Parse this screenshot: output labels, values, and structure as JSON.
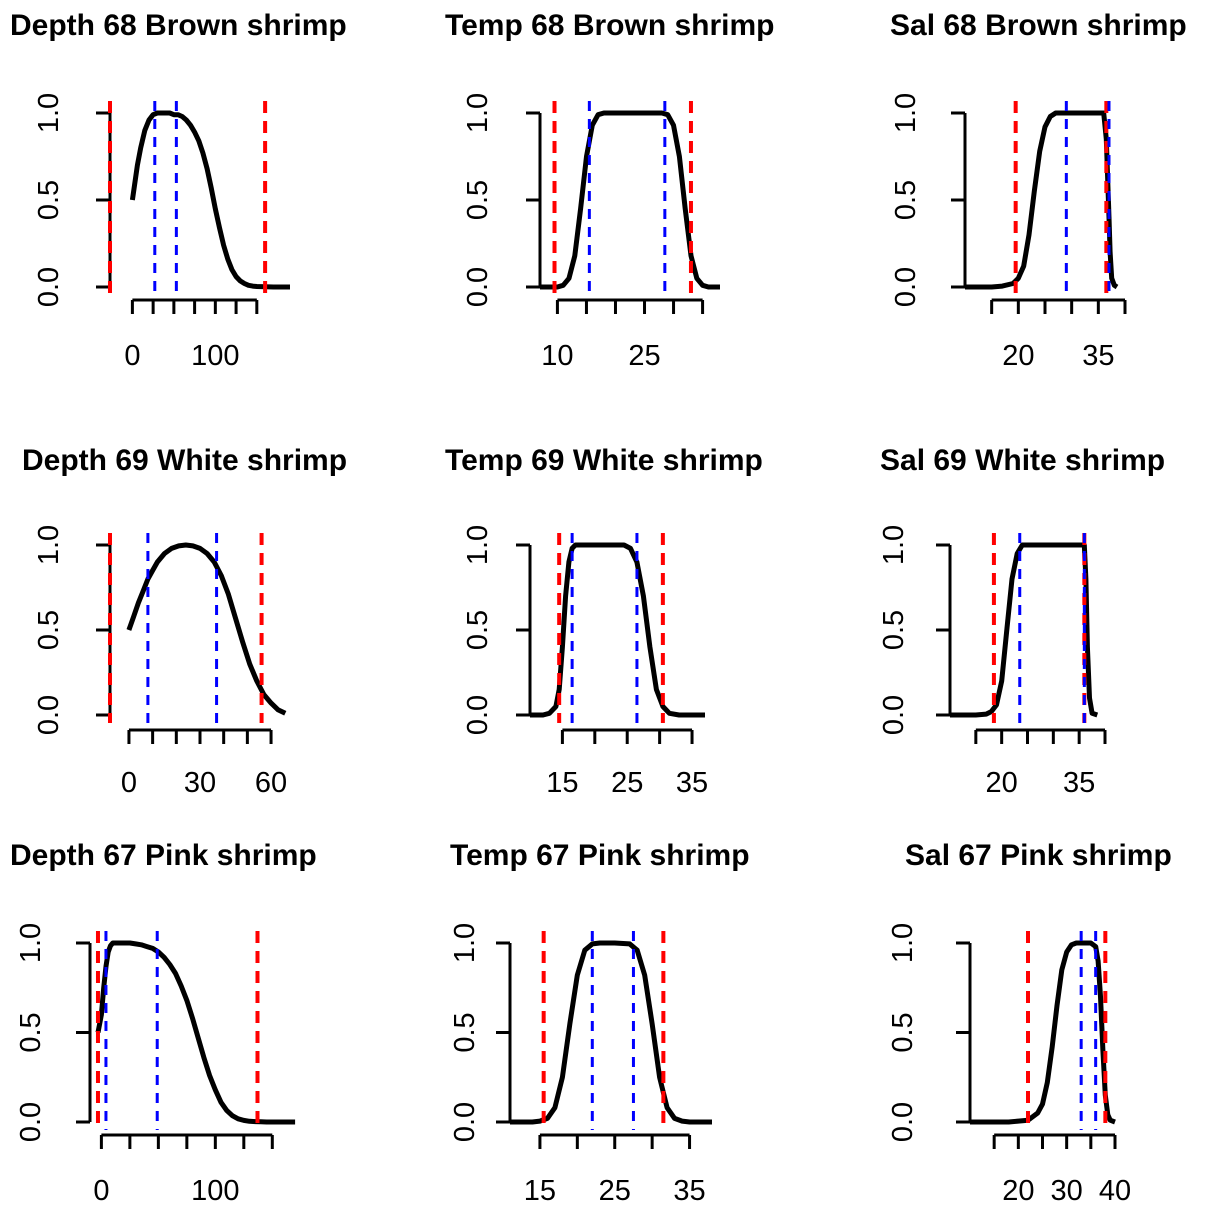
{
  "colors": {
    "red": "#ff0000",
    "blue": "#0000ff",
    "curve": "#000000"
  },
  "chart_data": [
    {
      "type": "line",
      "title": "Depth 68 Brown shrimp",
      "xlim": [
        -27,
        190
      ],
      "ylim": [
        0,
        1
      ],
      "xticks": [
        0,
        25,
        50,
        75,
        100,
        125,
        150
      ],
      "xtick_labels": [
        {
          "v": 0,
          "t": "0"
        },
        {
          "v": 100,
          "t": "100"
        }
      ],
      "yticks": [
        0,
        0.5,
        1
      ],
      "ytick_labels": [
        "0.0",
        "0.5",
        "1.0"
      ],
      "x": [
        0,
        3,
        6,
        10,
        15,
        20,
        25,
        30,
        35,
        40,
        45,
        50,
        55,
        60,
        65,
        70,
        75,
        80,
        85,
        90,
        95,
        100,
        105,
        110,
        115,
        120,
        125,
        130,
        135,
        140,
        145,
        150,
        160,
        170,
        180,
        190
      ],
      "y": [
        0.5,
        0.6,
        0.7,
        0.8,
        0.9,
        0.96,
        0.99,
        1,
        1,
        1,
        1,
        0.99,
        0.99,
        0.98,
        0.96,
        0.93,
        0.89,
        0.84,
        0.77,
        0.68,
        0.57,
        0.45,
        0.34,
        0.24,
        0.16,
        0.1,
        0.06,
        0.035,
        0.02,
        0.01,
        0.005,
        0.003,
        0.001,
        0,
        0,
        0
      ],
      "red_lines": [
        -27,
        160
      ],
      "blue_lines": [
        27,
        53
      ]
    },
    {
      "type": "line",
      "title": "Temp 68 Brown shrimp",
      "xlim": [
        7,
        38
      ],
      "ylim": [
        0,
        1
      ],
      "xticks": [
        10,
        15,
        20,
        25,
        30,
        35
      ],
      "xtick_labels": [
        {
          "v": 10,
          "t": "10"
        },
        {
          "v": 25,
          "t": "25"
        }
      ],
      "yticks": [
        0,
        0.5,
        1
      ],
      "ytick_labels": [
        "0.0",
        "0.5",
        "1.0"
      ],
      "x": [
        7,
        9,
        10,
        11,
        12,
        13,
        14,
        15,
        16,
        17,
        18,
        28,
        29,
        30,
        31,
        32,
        33,
        34,
        35,
        36,
        38
      ],
      "y": [
        0,
        0,
        0,
        0.01,
        0.05,
        0.18,
        0.45,
        0.75,
        0.93,
        0.99,
        1,
        1,
        0.99,
        0.93,
        0.75,
        0.45,
        0.18,
        0.05,
        0.01,
        0,
        0
      ],
      "red_lines": [
        9.5,
        33
      ],
      "blue_lines": [
        15.5,
        28.5
      ]
    },
    {
      "type": "line",
      "title": "Sal 68 Brown shrimp",
      "xlim": [
        10,
        40
      ],
      "ylim": [
        0,
        1
      ],
      "xticks": [
        15,
        20,
        25,
        30,
        35,
        40
      ],
      "xtick_labels": [
        {
          "v": 20,
          "t": "20"
        },
        {
          "v": 35,
          "t": "35"
        }
      ],
      "yticks": [
        0,
        0.5,
        1
      ],
      "ytick_labels": [
        "0.0",
        "0.5",
        "1.0"
      ],
      "x": [
        10,
        15,
        17,
        19,
        20,
        21,
        22,
        23,
        24,
        25,
        26,
        27,
        28,
        29,
        36,
        36.5,
        37,
        37.2,
        37.5,
        38,
        38.5
      ],
      "y": [
        0,
        0,
        0.005,
        0.02,
        0.05,
        0.12,
        0.3,
        0.55,
        0.78,
        0.92,
        0.98,
        1,
        1,
        1,
        1,
        0.85,
        0.4,
        0.2,
        0.05,
        0.01,
        0
      ],
      "red_lines": [
        19.5,
        36.5
      ],
      "blue_lines": [
        29,
        37
      ]
    },
    {
      "type": "line",
      "title": "Depth 69 White shrimp",
      "xlim": [
        -8,
        68
      ],
      "ylim": [
        0,
        1
      ],
      "xticks": [
        0,
        10,
        20,
        30,
        40,
        50,
        60
      ],
      "xtick_labels": [
        {
          "v": 0,
          "t": "0"
        },
        {
          "v": 30,
          "t": "30"
        },
        {
          "v": 60,
          "t": "60"
        }
      ],
      "yticks": [
        0,
        0.5,
        1
      ],
      "ytick_labels": [
        "0.0",
        "0.5",
        "1.0"
      ],
      "x": [
        0,
        2,
        4,
        6,
        8,
        10,
        12,
        15,
        18,
        21,
        24,
        27,
        30,
        33,
        36,
        39,
        42,
        45,
        48,
        51,
        54,
        57,
        60,
        63,
        66
      ],
      "y": [
        0.5,
        0.58,
        0.66,
        0.73,
        0.8,
        0.85,
        0.9,
        0.95,
        0.98,
        0.995,
        1,
        0.995,
        0.98,
        0.95,
        0.9,
        0.82,
        0.71,
        0.57,
        0.43,
        0.3,
        0.2,
        0.12,
        0.07,
        0.03,
        0.01
      ],
      "red_lines": [
        -8,
        56
      ],
      "blue_lines": [
        8,
        37
      ]
    },
    {
      "type": "line",
      "title": "Temp 69 White shrimp",
      "xlim": [
        10,
        37
      ],
      "ylim": [
        0,
        1
      ],
      "xticks": [
        15,
        20,
        25,
        30,
        35
      ],
      "xtick_labels": [
        {
          "v": 15,
          "t": "15"
        },
        {
          "v": 25,
          "t": "25"
        },
        {
          "v": 35,
          "t": "35"
        }
      ],
      "yticks": [
        0,
        0.5,
        1
      ],
      "ytick_labels": [
        "0.0",
        "0.5",
        "1.0"
      ],
      "x": [
        10,
        12,
        13,
        14,
        14.5,
        15,
        15.5,
        16,
        16.5,
        17,
        24.5,
        25.5,
        26.5,
        27.5,
        28.5,
        29.5,
        30.5,
        31.5,
        33,
        35,
        37
      ],
      "y": [
        0,
        0,
        0.01,
        0.05,
        0.15,
        0.4,
        0.7,
        0.9,
        0.98,
        1,
        1,
        0.98,
        0.9,
        0.7,
        0.4,
        0.15,
        0.05,
        0.01,
        0,
        0,
        0
      ],
      "red_lines": [
        14.5,
        30.5
      ],
      "blue_lines": [
        16.5,
        26.5
      ]
    },
    {
      "type": "line",
      "title": "Sal 69 White shrimp",
      "xlim": [
        10,
        40
      ],
      "ylim": [
        0,
        1
      ],
      "xticks": [
        15,
        20,
        25,
        30,
        35,
        40
      ],
      "xtick_labels": [
        {
          "v": 20,
          "t": "20"
        },
        {
          "v": 35,
          "t": "35"
        }
      ],
      "yticks": [
        0,
        0.5,
        1
      ],
      "ytick_labels": [
        "0.0",
        "0.5",
        "1.0"
      ],
      "x": [
        10,
        15,
        17,
        18,
        19,
        20,
        21,
        22,
        23,
        24,
        25,
        35,
        36,
        36.3,
        36.6,
        37,
        37.5,
        38.5
      ],
      "y": [
        0,
        0,
        0.005,
        0.02,
        0.06,
        0.2,
        0.5,
        0.8,
        0.95,
        1,
        1,
        1,
        1,
        0.8,
        0.4,
        0.1,
        0.01,
        0
      ],
      "red_lines": [
        18.5,
        36
      ],
      "blue_lines": [
        23.5,
        36
      ]
    },
    {
      "type": "line",
      "title": "Depth 67 Pink shrimp",
      "xlim": [
        -10,
        155
      ],
      "ylim": [
        0,
        1
      ],
      "xticks": [
        0,
        25,
        50,
        75,
        100,
        125,
        150
      ],
      "xtick_labels": [
        {
          "v": 0,
          "t": "0"
        },
        {
          "v": 100,
          "t": "100"
        }
      ],
      "yticks": [
        0,
        0.5,
        1
      ],
      "ytick_labels": [
        "0.0",
        "0.5",
        "1.0"
      ],
      "x": [
        -3,
        0,
        2,
        4,
        6,
        8,
        10,
        15,
        20,
        25,
        30,
        35,
        40,
        45,
        50,
        55,
        60,
        65,
        70,
        75,
        80,
        85,
        90,
        95,
        100,
        105,
        110,
        115,
        120,
        125,
        130,
        135,
        140,
        145,
        150,
        160,
        170
      ],
      "y": [
        0.5,
        0.6,
        0.75,
        0.87,
        0.95,
        0.985,
        1,
        1,
        1,
        1,
        0.995,
        0.99,
        0.98,
        0.97,
        0.95,
        0.92,
        0.88,
        0.83,
        0.76,
        0.68,
        0.58,
        0.47,
        0.36,
        0.26,
        0.18,
        0.11,
        0.065,
        0.035,
        0.018,
        0.009,
        0.004,
        0.002,
        0.001,
        0,
        0,
        0,
        0
      ],
      "red_lines": [
        -3,
        137
      ],
      "blue_lines": [
        4,
        49
      ]
    },
    {
      "type": "line",
      "title": "Temp 67 Pink shrimp",
      "xlim": [
        11,
        38
      ],
      "ylim": [
        0,
        1
      ],
      "xticks": [
        15,
        20,
        25,
        30,
        35
      ],
      "xtick_labels": [
        {
          "v": 15,
          "t": "15"
        },
        {
          "v": 25,
          "t": "25"
        },
        {
          "v": 35,
          "t": "35"
        }
      ],
      "yticks": [
        0,
        0.5,
        1
      ],
      "ytick_labels": [
        "0.0",
        "0.5",
        "1.0"
      ],
      "x": [
        11,
        14,
        15,
        16,
        17,
        18,
        19,
        20,
        21,
        22,
        23,
        25,
        27,
        28,
        29,
        30,
        31,
        32,
        33,
        34,
        35,
        38
      ],
      "y": [
        0,
        0,
        0.005,
        0.02,
        0.08,
        0.25,
        0.55,
        0.82,
        0.96,
        0.995,
        1,
        1,
        0.995,
        0.96,
        0.82,
        0.55,
        0.25,
        0.08,
        0.02,
        0.005,
        0,
        0
      ],
      "red_lines": [
        15.5,
        31.5
      ],
      "blue_lines": [
        22,
        27.5
      ]
    },
    {
      "type": "line",
      "title": "Sal 67 Pink shrimp",
      "xlim": [
        10,
        40
      ],
      "ylim": [
        0,
        1
      ],
      "xticks": [
        15,
        20,
        25,
        30,
        35,
        40
      ],
      "xtick_labels": [
        {
          "v": 20,
          "t": "20"
        },
        {
          "v": 30,
          "t": "30"
        },
        {
          "v": 40,
          "t": "40"
        }
      ],
      "yticks": [
        0,
        0.5,
        1
      ],
      "ytick_labels": [
        "0.0",
        "0.5",
        "1.0"
      ],
      "x": [
        10,
        18,
        20,
        22,
        24,
        25,
        26,
        27,
        28,
        29,
        30,
        31,
        32,
        33,
        34,
        35,
        36,
        36.5,
        37,
        37.5,
        38,
        38.5,
        39,
        40
      ],
      "y": [
        0,
        0,
        0.005,
        0.01,
        0.05,
        0.1,
        0.22,
        0.42,
        0.65,
        0.85,
        0.95,
        0.99,
        1,
        1,
        1,
        1,
        0.98,
        0.9,
        0.7,
        0.4,
        0.15,
        0.04,
        0.01,
        0
      ],
      "red_lines": [
        22,
        38
      ],
      "blue_lines": [
        33,
        36
      ]
    }
  ]
}
